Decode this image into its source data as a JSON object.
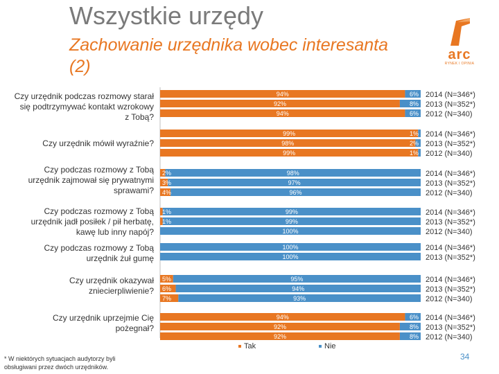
{
  "header": {
    "title": "Wszystkie urzędy",
    "subtitle": "Zachowanie urzędnika wobec interesanta (2)"
  },
  "logo": {
    "text": "arc",
    "subtext": "RYNEK I OPINIA"
  },
  "chart_data": {
    "type": "bar",
    "orientation": "horizontal-stacked-100",
    "xlim": [
      0,
      100
    ],
    "series_names": [
      "Tak",
      "Nie"
    ],
    "colors": {
      "Tak": "#e87722",
      "Nie": "#4a90c8"
    },
    "questions": [
      {
        "label": "Czy urzędnik podczas rozmowy starał się podtrzymywać kontakt wzrokowy z Tobą?",
        "rows": [
          {
            "year": "2014 (N=346*)",
            "tak": 94,
            "nie": 6,
            "tak_label": "94%",
            "nie_label": "6%"
          },
          {
            "year": "2013 (N=352*)",
            "tak": 92,
            "nie": 8,
            "tak_label": "92%",
            "nie_label": "8%"
          },
          {
            "year": "2012 (N=340)",
            "tak": 94,
            "nie": 6,
            "tak_label": "94%",
            "nie_label": "6%"
          }
        ]
      },
      {
        "label": "Czy urzędnik mówił wyraźnie?",
        "rows": [
          {
            "year": "2014 (N=346*)",
            "tak": 99,
            "nie": 1,
            "tak_label": "99%",
            "nie_label": "1%"
          },
          {
            "year": "2013 (N=352*)",
            "tak": 98,
            "nie": 2,
            "tak_label": "98%",
            "nie_label": "2%"
          },
          {
            "year": "2012 (N=340)",
            "tak": 99,
            "nie": 1,
            "tak_label": "99%",
            "nie_label": "1%"
          }
        ]
      },
      {
        "label": "Czy podczas rozmowy z Tobą urzędnik zajmował się prywatnymi sprawami?",
        "rows": [
          {
            "year": "2014 (N=346*)",
            "tak": 2,
            "nie": 98,
            "tak_label": "2%",
            "nie_label": "98%"
          },
          {
            "year": "2013 (N=352*)",
            "tak": 3,
            "nie": 97,
            "tak_label": "3%",
            "nie_label": "97%"
          },
          {
            "year": "2012 (N=340)",
            "tak": 4,
            "nie": 96,
            "tak_label": "4%",
            "nie_label": "96%"
          }
        ]
      },
      {
        "label": "Czy podczas rozmowy z Tobą urzędnik jadł posiłek / pił herbatę, kawę lub inny napój?",
        "rows": [
          {
            "year": "2014 (N=346*)",
            "tak": 1,
            "nie": 99,
            "tak_label": "1%",
            "nie_label": "99%"
          },
          {
            "year": "2013 (N=352*)",
            "tak": 1,
            "nie": 99,
            "tak_label": "1%",
            "nie_label": "99%"
          },
          {
            "year": "2012 (N=340)",
            "tak": 0,
            "nie": 100,
            "tak_label": "",
            "nie_label": "100%"
          }
        ]
      },
      {
        "label": "Czy podczas rozmowy z Tobą urzędnik żuł gumę",
        "rows": [
          {
            "year": "2014 (N=346*)",
            "tak": 0,
            "nie": 100,
            "tak_label": "",
            "nie_label": "100%"
          },
          {
            "year": "2013 (N=352*)",
            "tak": 0,
            "nie": 100,
            "tak_label": "",
            "nie_label": "100%"
          }
        ]
      },
      {
        "label": "Czy urzędnik okazywał zniecierpliwienie?",
        "rows": [
          {
            "year": "2014 (N=346*)",
            "tak": 5,
            "nie": 95,
            "tak_label": "5%",
            "nie_label": "95%"
          },
          {
            "year": "2013 (N=352*)",
            "tak": 6,
            "nie": 94,
            "tak_label": "6%",
            "nie_label": "94%"
          },
          {
            "year": "2012 (N=340)",
            "tak": 7,
            "nie": 93,
            "tak_label": "7%",
            "nie_label": "93%"
          }
        ]
      },
      {
        "label": "Czy urzędnik uprzejmie Cię pożegnał?",
        "rows": [
          {
            "year": "2014 (N=346*)",
            "tak": 94,
            "nie": 6,
            "tak_label": "94%",
            "nie_label": "6%"
          },
          {
            "year": "2013 (N=352*)",
            "tak": 92,
            "nie": 8,
            "tak_label": "92%",
            "nie_label": "8%"
          },
          {
            "year": "2012 (N=340)",
            "tak": 92,
            "nie": 8,
            "tak_label": "92%",
            "nie_label": "8%"
          }
        ]
      }
    ]
  },
  "legend": {
    "tak": "Tak",
    "nie": "Nie"
  },
  "footnote": "* W niektórych sytuacjach audytorzy byli obsługiwani przez dwóch urzędników.",
  "page_number": "34"
}
